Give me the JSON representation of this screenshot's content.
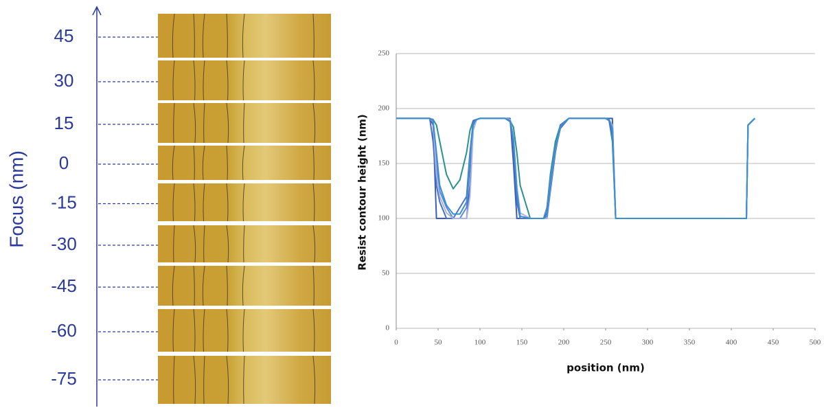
{
  "focus_panel": {
    "axis_label": "Focus (nm)",
    "levels": [
      "45",
      "30",
      "15",
      "0",
      "-15",
      "-30",
      "-45",
      "-60",
      "-75"
    ]
  },
  "chart_data": {
    "type": "line",
    "x_label": "position (nm)",
    "y_label": "Resist contour height (nm)",
    "x": [
      0,
      40,
      44,
      48,
      52,
      60,
      68,
      76,
      84,
      88,
      92,
      96,
      100,
      110,
      130,
      136,
      140,
      144,
      148,
      160,
      176,
      180,
      184,
      190,
      196,
      206,
      250,
      254,
      258,
      262,
      300,
      400,
      418,
      420,
      424,
      428
    ],
    "series": [
      {
        "color": "#2a9090",
        "values": [
          191,
          191,
          190,
          185,
          170,
          140,
          127,
          135,
          160,
          180,
          189,
          190,
          191,
          191,
          191,
          189,
          183,
          160,
          130,
          100,
          100,
          110,
          140,
          170,
          185,
          191,
          191,
          190,
          170,
          100,
          100,
          100,
          100,
          185,
          188,
          191
        ]
      },
      {
        "color": "#3b5db8",
        "values": [
          191,
          191,
          185,
          100,
          100,
          100,
          100,
          100,
          100,
          130,
          185,
          190,
          191,
          191,
          191,
          191,
          150,
          100,
          100,
          100,
          100,
          100,
          125,
          160,
          185,
          191,
          191,
          191,
          191,
          100,
          100,
          100,
          100,
          185,
          188,
          191
        ]
      },
      {
        "color": "#5a8ad6",
        "values": [
          191,
          191,
          190,
          150,
          125,
          110,
          100,
          100,
          110,
          150,
          187,
          190,
          191,
          191,
          191,
          190,
          170,
          120,
          100,
          100,
          100,
          110,
          135,
          165,
          183,
          191,
          191,
          190,
          180,
          100,
          100,
          100,
          100,
          185,
          188,
          191
        ]
      },
      {
        "color": "#4a70c8",
        "values": [
          191,
          191,
          170,
          130,
          115,
          100,
          100,
          110,
          120,
          160,
          189,
          190,
          191,
          191,
          191,
          188,
          165,
          115,
          100,
          100,
          100,
          105,
          130,
          162,
          182,
          191,
          191,
          189,
          175,
          100,
          100,
          100,
          100,
          185,
          188,
          191
        ]
      },
      {
        "color": "#a9b4e0",
        "values": [
          191,
          191,
          188,
          140,
          120,
          105,
          100,
          100,
          100,
          120,
          180,
          190,
          191,
          191,
          191,
          190,
          175,
          130,
          105,
          100,
          100,
          100,
          128,
          163,
          184,
          191,
          191,
          190,
          185,
          100,
          100,
          100,
          100,
          185,
          188,
          191
        ]
      },
      {
        "color": "#3a8fd0",
        "values": [
          191,
          191,
          189,
          160,
          130,
          112,
          104,
          104,
          115,
          155,
          186,
          190,
          191,
          191,
          191,
          189,
          172,
          125,
          102,
          100,
          100,
          102,
          130,
          164,
          184,
          191,
          191,
          190,
          182,
          100,
          100,
          100,
          100,
          185,
          188,
          191
        ]
      }
    ],
    "xlim": [
      0,
      500
    ],
    "xticks": [
      0,
      50,
      100,
      150,
      200,
      250,
      300,
      350,
      400,
      450,
      500
    ],
    "ylim": [
      0,
      250
    ],
    "yticks": [
      0,
      50,
      100,
      150,
      200,
      250
    ],
    "grid": true
  }
}
